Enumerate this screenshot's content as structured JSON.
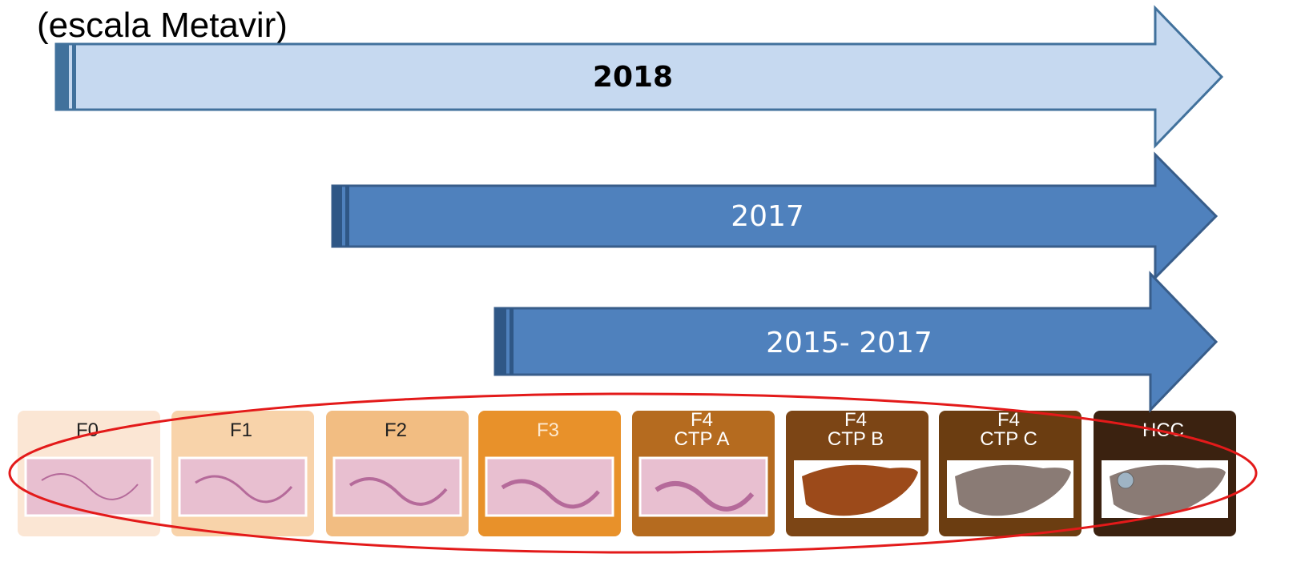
{
  "header": {
    "title": "(escala  Metavir)"
  },
  "arrows": [
    {
      "label": "2018"
    },
    {
      "label": "2017"
    },
    {
      "label": "2015- 2017"
    }
  ],
  "stages": [
    {
      "lines": [
        "F0"
      ]
    },
    {
      "lines": [
        "F1"
      ]
    },
    {
      "lines": [
        "F2"
      ]
    },
    {
      "lines": [
        "F3"
      ]
    },
    {
      "lines": [
        "F4",
        "CTP A"
      ]
    },
    {
      "lines": [
        "F4",
        "CTP B"
      ]
    },
    {
      "lines": [
        "F4",
        "CTP C"
      ]
    },
    {
      "lines": [
        "HCC"
      ]
    }
  ]
}
